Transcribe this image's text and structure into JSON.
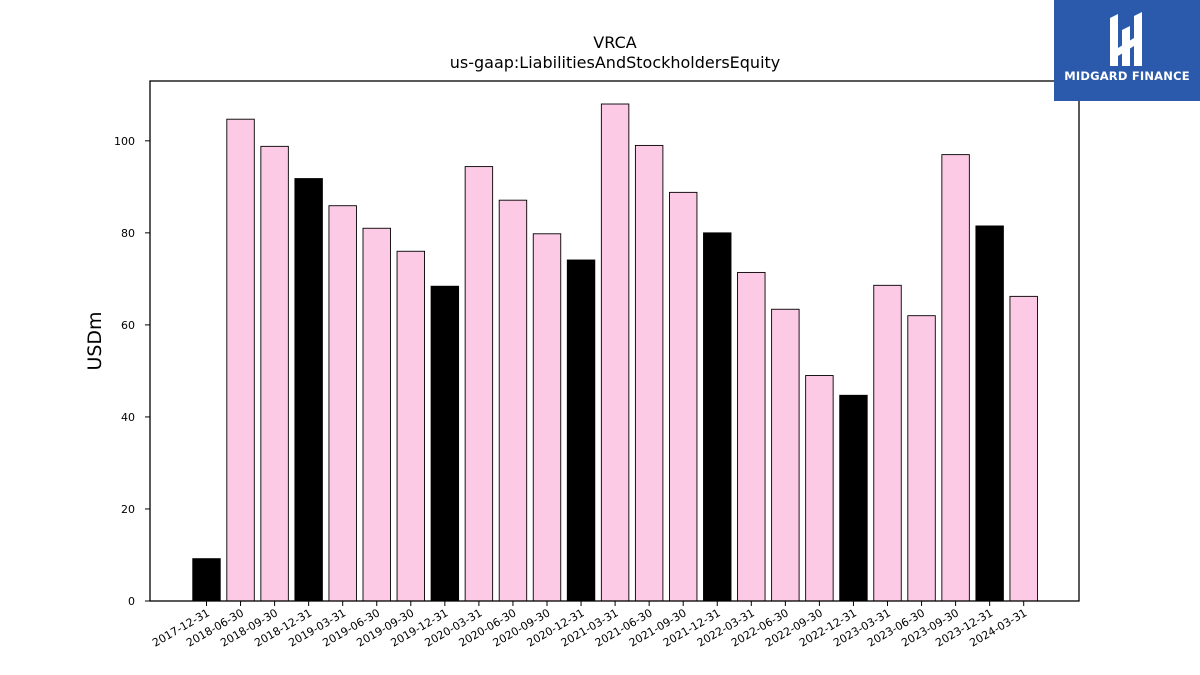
{
  "chart_data": {
    "type": "bar",
    "title": "VRCA",
    "subtitle": "us-gaap:LiabilitiesAndStockholdersEquity",
    "ylabel": "USDm",
    "xlabel": "",
    "ylim": [
      0,
      113
    ],
    "yticks": [
      0,
      20,
      40,
      60,
      80,
      100
    ],
    "categories": [
      "2017-12-31",
      "2018-06-30",
      "2018-09-30",
      "2018-12-31",
      "2019-03-31",
      "2019-06-30",
      "2019-09-30",
      "2019-12-31",
      "2020-03-31",
      "2020-06-30",
      "2020-09-30",
      "2020-12-31",
      "2021-03-31",
      "2021-06-30",
      "2021-09-30",
      "2021-12-31",
      "2022-03-31",
      "2022-06-30",
      "2022-09-30",
      "2022-12-31",
      "2023-03-31",
      "2023-06-30",
      "2023-09-30",
      "2023-12-31",
      "2024-03-31"
    ],
    "values": [
      9.2,
      104.7,
      98.8,
      91.8,
      85.9,
      81.0,
      76.0,
      68.4,
      94.4,
      87.1,
      79.8,
      74.1,
      108.0,
      99.0,
      88.8,
      80.0,
      71.4,
      63.4,
      49.0,
      44.7,
      68.6,
      62.0,
      97.0,
      81.5,
      66.2
    ],
    "colors": {
      "quarterly": "#fccae4",
      "year_end": "#000000",
      "edge": "#000000"
    },
    "grid": false
  },
  "logo": {
    "text": "MIDGARD FINANCE"
  }
}
